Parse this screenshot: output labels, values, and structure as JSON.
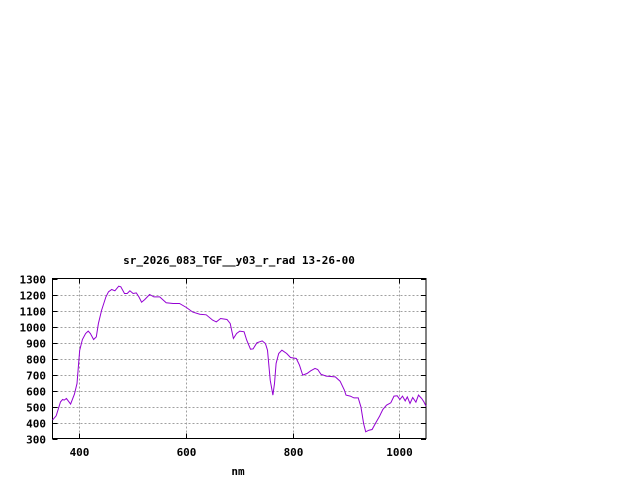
{
  "chart_data": {
    "type": "line",
    "title": "sr_2026_083_TGF__y03_r_rad 13-26-00",
    "xlabel": "nm",
    "ylabel": "",
    "xlim": [
      350,
      1050
    ],
    "ylim": [
      300,
      1300
    ],
    "xticks": [
      400,
      600,
      800,
      1000
    ],
    "yticks": [
      300,
      400,
      500,
      600,
      700,
      800,
      900,
      1000,
      1100,
      1200,
      1300
    ],
    "grid": true,
    "line_color": "#9400d3",
    "series": [
      {
        "x": [
          350,
          357,
          365,
          369,
          372,
          376,
          384,
          391,
          396,
          401,
          406,
          412,
          417,
          421,
          427,
          432,
          436,
          442,
          450,
          455,
          461,
          467,
          474,
          478,
          485,
          490,
          495,
          501,
          507,
          512,
          517,
          523,
          532,
          540,
          551,
          563,
          576,
          588,
          601,
          613,
          626,
          638,
          650,
          657,
          665,
          677,
          683,
          689,
          695,
          701,
          709,
          714,
          721,
          726,
          733,
          743,
          749,
          753,
          758,
          763,
          766,
          769,
          774,
          780,
          789,
          796,
          807,
          813,
          819,
          827,
          834,
          842,
          847,
          853,
          863,
          880,
          889,
          897,
          900,
          908,
          915,
          923,
          928,
          933,
          937,
          943,
          949,
          956,
          963,
          969,
          976,
          984,
          990,
          996,
          1001,
          1006,
          1011,
          1015,
          1020,
          1025,
          1031,
          1036,
          1042,
          1046,
          1050
        ],
        "y": [
          415,
          442,
          529,
          544,
          540,
          550,
          515,
          577,
          644,
          852,
          919,
          956,
          971,
          956,
          919,
          935,
          1019,
          1102,
          1185,
          1217,
          1231,
          1223,
          1252,
          1248,
          1206,
          1206,
          1223,
          1206,
          1210,
          1185,
          1152,
          1169,
          1200,
          1185,
          1185,
          1148,
          1144,
          1144,
          1119,
          1090,
          1077,
          1073,
          1040,
          1029,
          1050,
          1044,
          1019,
          925,
          956,
          971,
          967,
          915,
          858,
          860,
          898,
          910,
          894,
          852,
          665,
          571,
          644,
          769,
          831,
          852,
          831,
          806,
          800,
          758,
          696,
          706,
          723,
          738,
          731,
          702,
          690,
          685,
          658,
          602,
          571,
          565,
          554,
          554,
          498,
          394,
          342,
          352,
          356,
          398,
          440,
          481,
          508,
          523,
          565,
          567,
          544,
          565,
          535,
          560,
          519,
          556,
          527,
          571,
          550,
          529,
          502
        ]
      }
    ]
  }
}
